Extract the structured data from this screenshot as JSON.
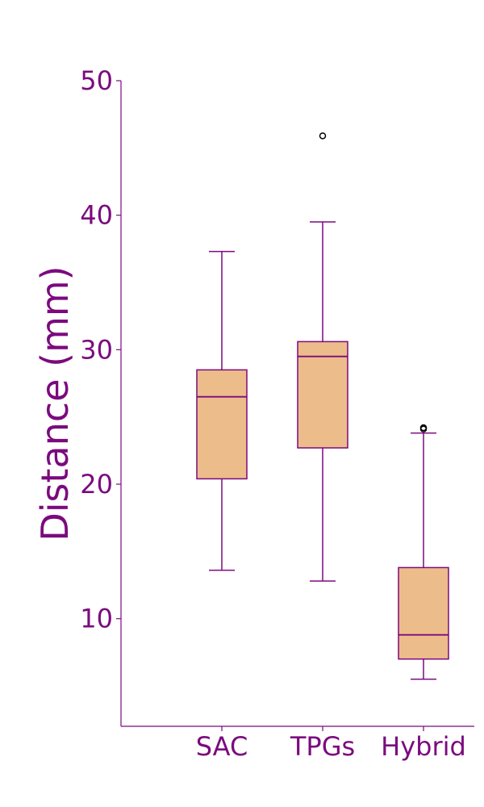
{
  "chart_data": {
    "type": "boxplot",
    "title": "",
    "xlabel": "",
    "ylabel": "Distance (mm)",
    "ylim": [
      2,
      50
    ],
    "yticks": [
      10,
      20,
      30,
      40,
      50
    ],
    "ytick_labels": [
      "10",
      "20",
      "30",
      "40",
      "50"
    ],
    "grid": false,
    "categories": [
      "SAC",
      "TPGs",
      "Hybrid"
    ],
    "boxes": [
      {
        "name": "SAC",
        "whisker_low": 13.6,
        "q1": 20.4,
        "median": 26.5,
        "q3": 28.5,
        "whisker_high": 37.3,
        "outliers": []
      },
      {
        "name": "TPGs",
        "whisker_low": 12.8,
        "q1": 22.7,
        "median": 29.5,
        "q3": 30.6,
        "whisker_high": 39.5,
        "outliers": [
          45.9
        ]
      },
      {
        "name": "Hybrid",
        "whisker_low": 5.5,
        "q1": 7.0,
        "median": 8.8,
        "q3": 13.8,
        "whisker_high": 23.8,
        "outliers": [
          24.1,
          24.2
        ]
      }
    ],
    "colors": {
      "box_fill": "#edbc8b",
      "line": "#7b0a7e",
      "text": "#7b0a7e",
      "outlier": "#000000"
    }
  }
}
